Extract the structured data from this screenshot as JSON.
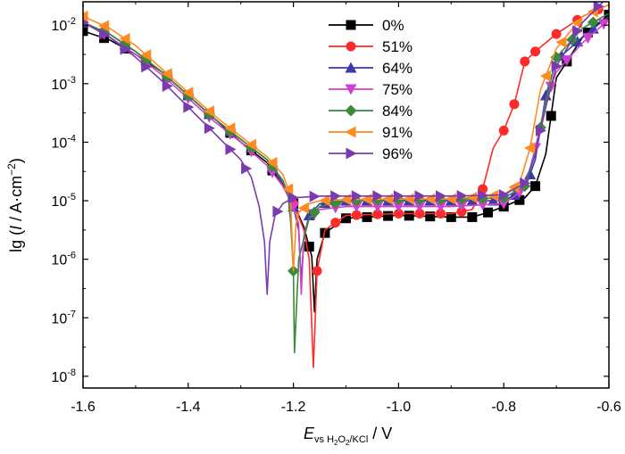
{
  "chart_data": {
    "type": "line",
    "xlabel_main": "E",
    "xlabel_sub_vs": "vs H",
    "xlabel_sub_2a": "2",
    "xlabel_sub_O": "O",
    "xlabel_sub_2b": "2",
    "xlabel_sub_kcl": "/KCl",
    "xlabel_unit": " / V",
    "ylabel_prefix": "lg (",
    "ylabel_I": "I",
    "ylabel_mid": " / A·cm",
    "ylabel_exp": "−2",
    "ylabel_suffix": ")",
    "xlim": [
      -1.6,
      -0.6
    ],
    "ylim_log10": [
      -8.2,
      -1.6
    ],
    "x_ticks": [
      {
        "value": -1.6,
        "label": "-1.6"
      },
      {
        "value": -1.4,
        "label": "-1.4"
      },
      {
        "value": -1.2,
        "label": "-1.2"
      },
      {
        "value": -1.0,
        "label": "-1.0"
      },
      {
        "value": -0.8,
        "label": "-0.8"
      },
      {
        "value": -0.6,
        "label": "-0.6"
      }
    ],
    "y_ticks": [
      {
        "exp": -2,
        "base": "10",
        "sup": "-2"
      },
      {
        "exp": -3,
        "base": "10",
        "sup": "-3"
      },
      {
        "exp": -4,
        "base": "10",
        "sup": "-4"
      },
      {
        "exp": -5,
        "base": "10",
        "sup": "-5"
      },
      {
        "exp": -6,
        "base": "10",
        "sup": "-6"
      },
      {
        "exp": -7,
        "base": "10",
        "sup": "-7"
      },
      {
        "exp": -8,
        "base": "10",
        "sup": "-8"
      }
    ],
    "series": [
      {
        "name": "0%",
        "color": "#000000",
        "marker": "square",
        "x": [
          -1.6,
          -1.55,
          -1.5,
          -1.45,
          -1.4,
          -1.35,
          -1.3,
          -1.25,
          -1.22,
          -1.2,
          -1.18,
          -1.165,
          -1.16,
          -1.155,
          -1.14,
          -1.1,
          -1.0,
          -0.9,
          -0.86,
          -0.83,
          -0.8,
          -0.76,
          -0.74,
          -0.72,
          -0.7,
          -0.65,
          -0.6
        ],
        "log_y": [
          -2.1,
          -2.25,
          -2.5,
          -2.8,
          -3.2,
          -3.6,
          -4.0,
          -4.35,
          -4.75,
          -5.05,
          -5.45,
          -5.95,
          -6.9,
          -6.0,
          -5.55,
          -5.3,
          -5.25,
          -5.28,
          -5.28,
          -5.2,
          -5.1,
          -4.95,
          -4.75,
          -4.2,
          -2.9,
          -2.2,
          -1.82
        ],
        "marker_x": [
          -1.6,
          -1.56,
          -1.52,
          -1.48,
          -1.44,
          -1.4,
          -1.36,
          -1.32,
          -1.28,
          -1.24,
          -1.2,
          -1.17,
          -1.14,
          -1.1,
          -1.06,
          -1.02,
          -0.98,
          -0.94,
          -0.9,
          -0.86,
          -0.83,
          -0.8,
          -0.77,
          -0.74,
          -0.71,
          -0.68,
          -0.64,
          -0.6
        ]
      },
      {
        "name": "51%",
        "color": "#ff2a2a",
        "marker": "circle",
        "x": [
          -1.6,
          -1.55,
          -1.5,
          -1.45,
          -1.4,
          -1.35,
          -1.3,
          -1.25,
          -1.22,
          -1.2,
          -1.18,
          -1.17,
          -1.162,
          -1.155,
          -1.14,
          -1.1,
          -1.0,
          -0.9,
          -0.86,
          -0.84,
          -0.82,
          -0.8,
          -0.78,
          -0.76,
          -0.74,
          -0.7,
          -0.65,
          -0.6
        ],
        "log_y": [
          -1.95,
          -2.15,
          -2.45,
          -2.8,
          -3.2,
          -3.6,
          -3.95,
          -4.3,
          -4.7,
          -5.05,
          -5.5,
          -6.0,
          -7.85,
          -6.2,
          -5.5,
          -5.25,
          -5.22,
          -5.22,
          -5.15,
          -4.8,
          -4.1,
          -3.8,
          -3.35,
          -2.62,
          -2.45,
          -2.15,
          -1.85,
          -1.65
        ],
        "marker_x": [
          -1.6,
          -1.56,
          -1.52,
          -1.48,
          -1.44,
          -1.4,
          -1.36,
          -1.32,
          -1.28,
          -1.24,
          -1.2,
          -1.155,
          -1.12,
          -1.08,
          -1.04,
          -1.0,
          -0.96,
          -0.92,
          -0.88,
          -0.84,
          -0.8,
          -0.78,
          -0.76,
          -0.74,
          -0.7,
          -0.66,
          -0.62
        ]
      },
      {
        "name": "64%",
        "color": "#3a3aaa",
        "marker": "triangle-up",
        "x": [
          -1.6,
          -1.55,
          -1.5,
          -1.45,
          -1.4,
          -1.35,
          -1.3,
          -1.25,
          -1.22,
          -1.2,
          -1.19,
          -1.185,
          -1.18,
          -1.17,
          -1.15,
          -1.1,
          -1.0,
          -0.9,
          -0.8,
          -0.76,
          -0.74,
          -0.72,
          -0.7,
          -0.65,
          -0.6
        ],
        "log_y": [
          -1.95,
          -2.15,
          -2.45,
          -2.8,
          -3.2,
          -3.6,
          -3.95,
          -4.3,
          -4.7,
          -5.1,
          -5.5,
          -6.4,
          -5.6,
          -5.25,
          -5.05,
          -5.0,
          -5.0,
          -5.0,
          -5.0,
          -4.8,
          -4.3,
          -3.2,
          -2.6,
          -2.2,
          -1.85
        ],
        "marker_x": [
          -1.6,
          -1.56,
          -1.52,
          -1.48,
          -1.44,
          -1.4,
          -1.36,
          -1.32,
          -1.28,
          -1.24,
          -1.2,
          -1.17,
          -1.14,
          -1.1,
          -1.06,
          -1.02,
          -0.98,
          -0.94,
          -0.9,
          -0.86,
          -0.82,
          -0.78,
          -0.75,
          -0.72,
          -0.69,
          -0.66,
          -0.63
        ]
      },
      {
        "name": "75%",
        "color": "#d040d0",
        "marker": "triangle-down",
        "x": [
          -1.6,
          -1.55,
          -1.5,
          -1.45,
          -1.4,
          -1.35,
          -1.3,
          -1.25,
          -1.22,
          -1.2,
          -1.19,
          -1.185,
          -1.18,
          -1.17,
          -1.15,
          -1.1,
          -1.0,
          -0.9,
          -0.8,
          -0.76,
          -0.74,
          -0.72,
          -0.7,
          -0.65,
          -0.6
        ],
        "log_y": [
          -1.95,
          -2.2,
          -2.5,
          -2.85,
          -3.25,
          -3.65,
          -4.0,
          -4.4,
          -4.75,
          -5.1,
          -5.4,
          -6.6,
          -5.6,
          -5.3,
          -5.15,
          -5.1,
          -5.1,
          -5.1,
          -5.05,
          -4.8,
          -4.1,
          -3.3,
          -2.8,
          -2.3,
          -1.9
        ],
        "marker_x": [
          -1.6,
          -1.56,
          -1.52,
          -1.48,
          -1.44,
          -1.4,
          -1.36,
          -1.32,
          -1.28,
          -1.24,
          -1.2,
          -1.16,
          -1.12,
          -1.08,
          -1.04,
          -1.0,
          -0.96,
          -0.92,
          -0.88,
          -0.84,
          -0.8,
          -0.77,
          -0.74,
          -0.71,
          -0.68,
          -0.64,
          -0.61
        ]
      },
      {
        "name": "84%",
        "color": "#3a8a3a",
        "marker": "diamond",
        "x": [
          -1.6,
          -1.55,
          -1.5,
          -1.45,
          -1.4,
          -1.35,
          -1.3,
          -1.25,
          -1.22,
          -1.21,
          -1.205,
          -1.2,
          -1.198,
          -1.19,
          -1.17,
          -1.15,
          -1.1,
          -1.0,
          -0.9,
          -0.8,
          -0.76,
          -0.74,
          -0.72,
          -0.7,
          -0.65,
          -0.6
        ],
        "log_y": [
          -1.95,
          -2.15,
          -2.45,
          -2.8,
          -3.2,
          -3.6,
          -3.95,
          -4.3,
          -4.65,
          -4.9,
          -5.4,
          -6.2,
          -7.6,
          -6.0,
          -5.3,
          -5.1,
          -5.0,
          -4.98,
          -4.98,
          -4.95,
          -4.75,
          -4.2,
          -3.3,
          -2.55,
          -2.05,
          -1.8
        ],
        "marker_x": [
          -1.6,
          -1.56,
          -1.52,
          -1.48,
          -1.44,
          -1.4,
          -1.36,
          -1.32,
          -1.28,
          -1.24,
          -1.2,
          -1.16,
          -1.12,
          -1.08,
          -1.04,
          -1.0,
          -0.96,
          -0.92,
          -0.88,
          -0.84,
          -0.8,
          -0.76,
          -0.73,
          -0.7,
          -0.67,
          -0.63
        ]
      },
      {
        "name": "91%",
        "color": "#ff8a20",
        "marker": "triangle-left",
        "x": [
          -1.6,
          -1.55,
          -1.5,
          -1.45,
          -1.4,
          -1.35,
          -1.3,
          -1.25,
          -1.22,
          -1.21,
          -1.205,
          -1.2,
          -1.195,
          -1.19,
          -1.17,
          -1.15,
          -1.1,
          -1.0,
          -0.9,
          -0.8,
          -0.77,
          -0.75,
          -0.73,
          -0.7,
          -0.65,
          -0.6
        ],
        "log_y": [
          -1.85,
          -2.05,
          -2.35,
          -2.75,
          -3.15,
          -3.55,
          -3.9,
          -4.25,
          -4.55,
          -4.8,
          -5.1,
          -6.2,
          -5.4,
          -5.2,
          -5.05,
          -5.0,
          -4.98,
          -4.97,
          -4.97,
          -4.9,
          -4.7,
          -4.1,
          -3.1,
          -2.4,
          -1.85,
          -1.65
        ],
        "marker_x": [
          -1.6,
          -1.56,
          -1.52,
          -1.48,
          -1.44,
          -1.4,
          -1.36,
          -1.32,
          -1.28,
          -1.24,
          -1.21,
          -1.18,
          -1.14,
          -1.1,
          -1.06,
          -1.02,
          -0.98,
          -0.94,
          -0.9,
          -0.86,
          -0.82,
          -0.78,
          -0.75,
          -0.72,
          -0.69,
          -0.66,
          -0.63
        ]
      },
      {
        "name": "96%",
        "color": "#7a3ab0",
        "marker": "triangle-right",
        "x": [
          -1.6,
          -1.55,
          -1.5,
          -1.45,
          -1.4,
          -1.35,
          -1.3,
          -1.28,
          -1.265,
          -1.255,
          -1.25,
          -1.245,
          -1.235,
          -1.22,
          -1.2,
          -1.15,
          -1.1,
          -1.0,
          -0.9,
          -0.8,
          -0.76,
          -0.74,
          -0.72,
          -0.7,
          -0.65,
          -0.6
        ],
        "log_y": [
          -1.95,
          -2.2,
          -2.55,
          -2.95,
          -3.4,
          -3.85,
          -4.3,
          -4.6,
          -5.1,
          -5.7,
          -6.6,
          -5.7,
          -5.25,
          -5.05,
          -4.95,
          -4.92,
          -4.92,
          -4.92,
          -4.92,
          -4.9,
          -4.7,
          -4.2,
          -3.4,
          -2.7,
          -1.95,
          -1.5
        ],
        "marker_x": [
          -1.6,
          -1.56,
          -1.52,
          -1.48,
          -1.44,
          -1.4,
          -1.36,
          -1.32,
          -1.29,
          -1.23,
          -1.2,
          -1.16,
          -1.12,
          -1.08,
          -1.04,
          -1.0,
          -0.96,
          -0.92,
          -0.88,
          -0.84,
          -0.8,
          -0.76,
          -0.73,
          -0.7,
          -0.66,
          -0.62
        ]
      }
    ]
  }
}
